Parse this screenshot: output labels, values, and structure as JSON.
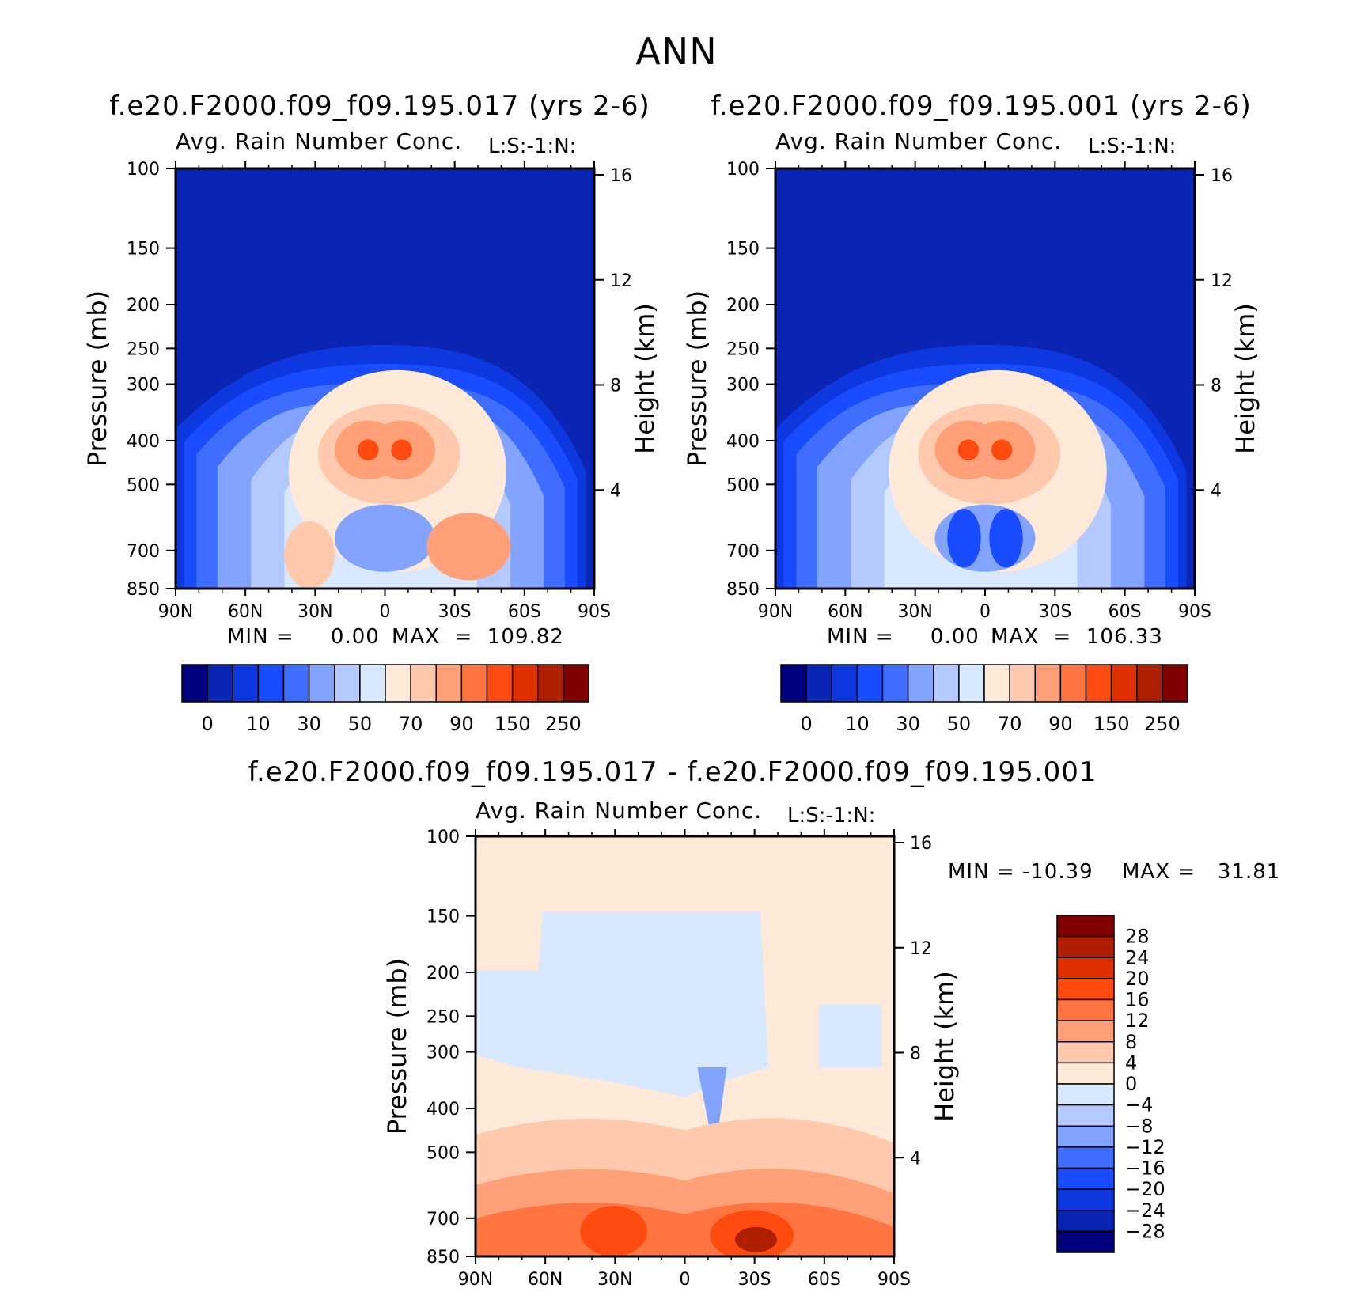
{
  "main_title": "ANN",
  "colors": {
    "full_palette": [
      "#00007f",
      "#0a25b4",
      "#0e38df",
      "#1a4cff",
      "#3f6eff",
      "#82a4ff",
      "#b3c9ff",
      "#d8e8ff",
      "#ffe9d9",
      "#ffc9ad",
      "#ffa078",
      "#ff7440",
      "#ff4a10",
      "#e03000",
      "#b01e00",
      "#800000"
    ],
    "diff_palette": [
      "#00007f",
      "#0a25b4",
      "#0e38df",
      "#1a4cff",
      "#3f6eff",
      "#82a4ff",
      "#b3c9ff",
      "#d8e8ff",
      "#ffe9d9",
      "#ffc9ad",
      "#ffa078",
      "#ff7440",
      "#ff4a10",
      "#e03000",
      "#b01e00",
      "#800000"
    ]
  },
  "chart_data": [
    {
      "type": "heatmap",
      "title": "f.e20.F2000.f09_f09.195.017 (yrs 2-6)",
      "subtitle_left": "Avg. Rain Number Conc.",
      "subtitle_right": "L:S:-1:N:",
      "xlabel": "",
      "ylabel": "Pressure (mb)",
      "y2label": "Height (km)",
      "x_ticks": [
        "90N",
        "60N",
        "30N",
        "0",
        "30S",
        "60S",
        "90S"
      ],
      "y_ticks": [
        "100",
        "150",
        "200",
        "250",
        "300",
        "400",
        "500",
        "700",
        "850"
      ],
      "y2_ticks": [
        "16",
        "12",
        "8",
        "4"
      ],
      "min_label": "MIN =     0.00",
      "max_label": "MAX  =  109.82",
      "colorbar_labels": [
        "0",
        "10",
        "30",
        "50",
        "70",
        "90",
        "150",
        "250"
      ],
      "colorbar_orientation": "horizontal"
    },
    {
      "type": "heatmap",
      "title": "f.e20.F2000.f09_f09.195.001 (yrs 2-6)",
      "subtitle_left": "Avg. Rain Number Conc.",
      "subtitle_right": "L:S:-1:N:",
      "xlabel": "",
      "ylabel": "Pressure (mb)",
      "y2label": "Height (km)",
      "x_ticks": [
        "90N",
        "60N",
        "30N",
        "0",
        "30S",
        "60S",
        "90S"
      ],
      "y_ticks": [
        "100",
        "150",
        "200",
        "250",
        "300",
        "400",
        "500",
        "700",
        "850"
      ],
      "y2_ticks": [
        "16",
        "12",
        "8",
        "4"
      ],
      "min_label": "MIN =     0.00",
      "max_label": "MAX  =  106.33",
      "colorbar_labels": [
        "0",
        "10",
        "30",
        "50",
        "70",
        "90",
        "150",
        "250"
      ],
      "colorbar_orientation": "horizontal"
    },
    {
      "type": "heatmap",
      "title": "f.e20.F2000.f09_f09.195.017 - f.e20.F2000.f09_f09.195.001",
      "subtitle_left": "Avg. Rain Number Conc.",
      "subtitle_right": "L:S:-1:N:",
      "xlabel": "",
      "ylabel": "Pressure (mb)",
      "y2label": "Height (km)",
      "x_ticks": [
        "90N",
        "60N",
        "30N",
        "0",
        "30S",
        "60S",
        "90S"
      ],
      "y_ticks": [
        "100",
        "150",
        "200",
        "250",
        "300",
        "400",
        "500",
        "700",
        "850"
      ],
      "y2_ticks": [
        "16",
        "12",
        "8",
        "4"
      ],
      "min_label": "MIN = -10.39",
      "max_label": "MAX =   31.81",
      "colorbar_labels": [
        "28",
        "24",
        "20",
        "16",
        "12",
        "8",
        "4",
        "0",
        "-4",
        "-8",
        "-12",
        "-16",
        "-20",
        "-24",
        "-28"
      ],
      "colorbar_orientation": "vertical"
    }
  ]
}
